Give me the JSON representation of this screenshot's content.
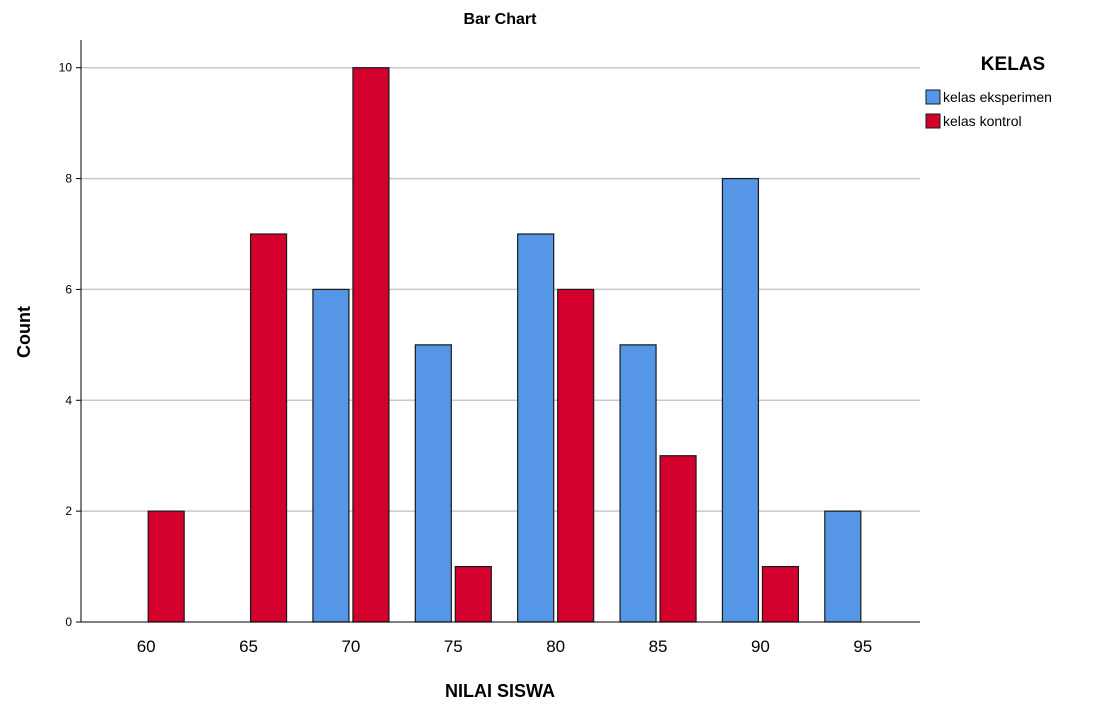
{
  "chart_data": {
    "type": "bar",
    "title": "Bar Chart",
    "xlabel": "NILAI SISWA",
    "ylabel": "Count",
    "categories": [
      "60",
      "65",
      "70",
      "75",
      "80",
      "85",
      "90",
      "95"
    ],
    "series": [
      {
        "name": "kelas eksperimen",
        "color": "#5597e6",
        "values": [
          0,
          0,
          6,
          5,
          7,
          5,
          8,
          2
        ]
      },
      {
        "name": "kelas kontrol",
        "color": "#d3002e",
        "values": [
          2,
          7,
          10,
          1,
          6,
          3,
          1,
          0
        ]
      }
    ],
    "ylim": [
      0,
      10.5
    ],
    "yticks": [
      0,
      2,
      4,
      6,
      8,
      10
    ],
    "grid": true,
    "legend": {
      "title": "KELAS",
      "position": "top-right"
    }
  }
}
